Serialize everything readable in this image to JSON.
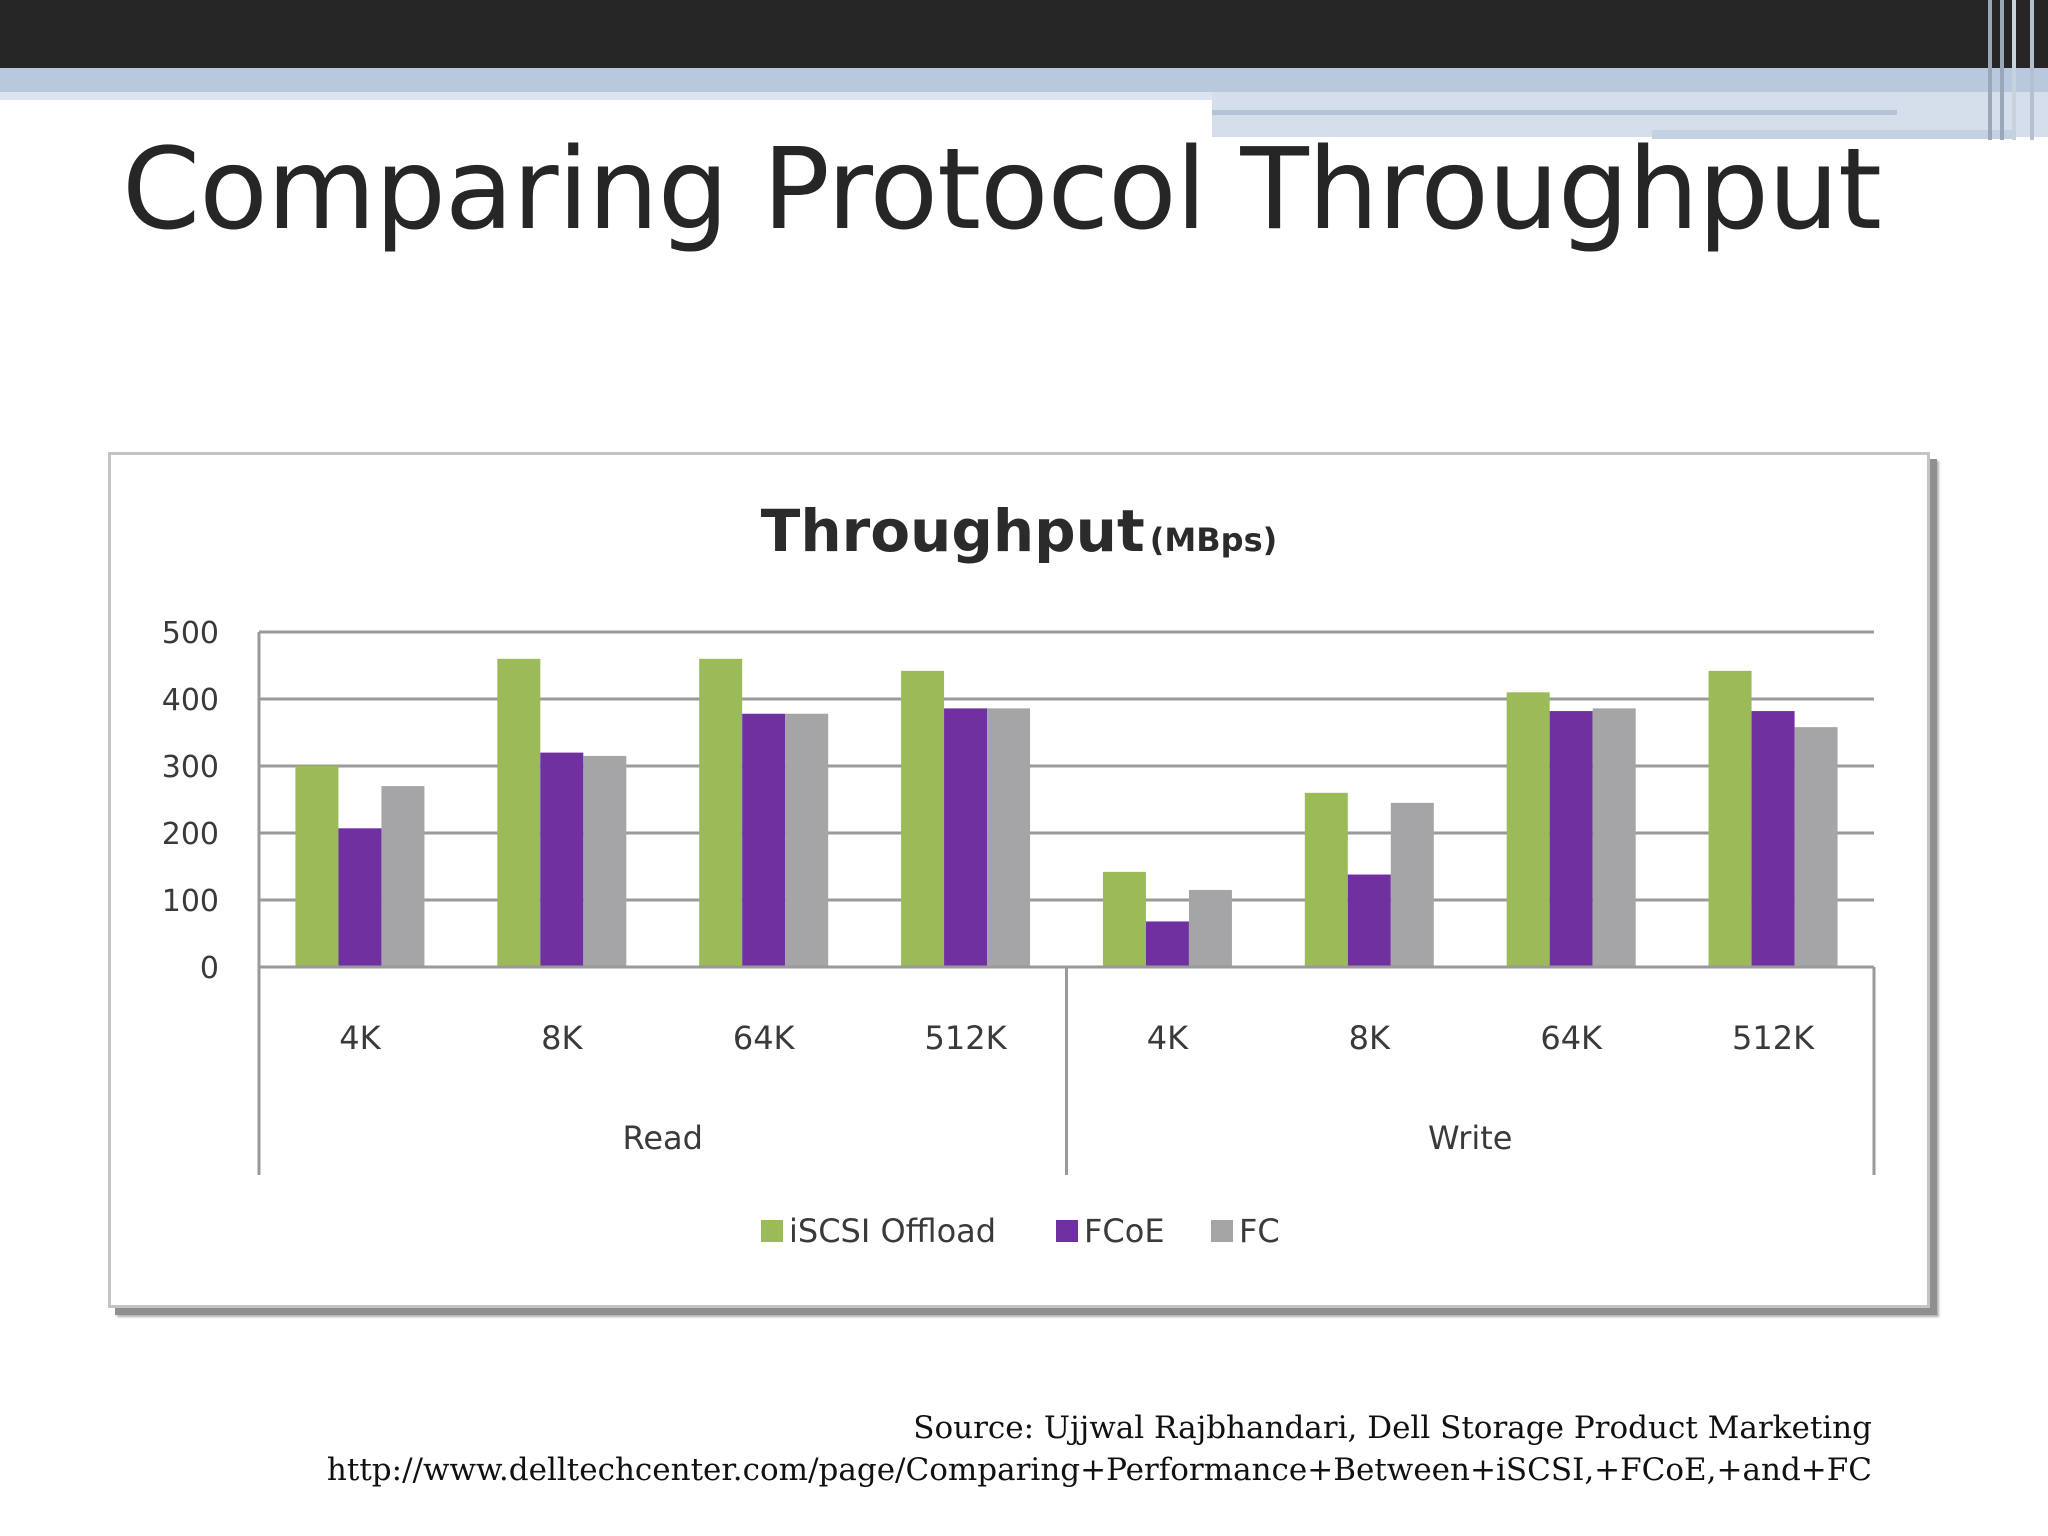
{
  "slide": {
    "title": "Comparing Protocol Throughput",
    "source_line1": "Source: Ujjwal Rajbhandari, Dell Storage Product Marketing",
    "source_line2": "http://www.delltechcenter.com/page/Comparing+Performance+Between+iSCSI,+FCoE,+and+FC"
  },
  "colors": {
    "iscsi": "#9bbb59",
    "fcoe": "#7030a0",
    "fc": "#a5a5a7",
    "grid": "#9a9a9a",
    "text": "#3a3a3a"
  },
  "chart_data": {
    "type": "bar",
    "title": "Throughput",
    "title_unit": "(MBps)",
    "groups": [
      {
        "name": "Read",
        "categories": [
          "4K",
          "8K",
          "64K",
          "512K"
        ]
      },
      {
        "name": "Write",
        "categories": [
          "4K",
          "8K",
          "64K",
          "512K"
        ]
      }
    ],
    "series": [
      {
        "name": "iSCSI Offload",
        "color_key": "iscsi",
        "values": [
          300,
          460,
          460,
          442,
          142,
          260,
          410,
          442
        ]
      },
      {
        "name": "FCoE",
        "color_key": "fcoe",
        "values": [
          207,
          320,
          378,
          386,
          68,
          138,
          382,
          382
        ]
      },
      {
        "name": "FC",
        "color_key": "fc",
        "values": [
          270,
          315,
          378,
          386,
          115,
          245,
          386,
          358
        ]
      }
    ],
    "yticks": [
      0,
      100,
      200,
      300,
      400,
      500
    ],
    "ylim": [
      0,
      500
    ],
    "grid": true,
    "legend_position": "bottom"
  }
}
